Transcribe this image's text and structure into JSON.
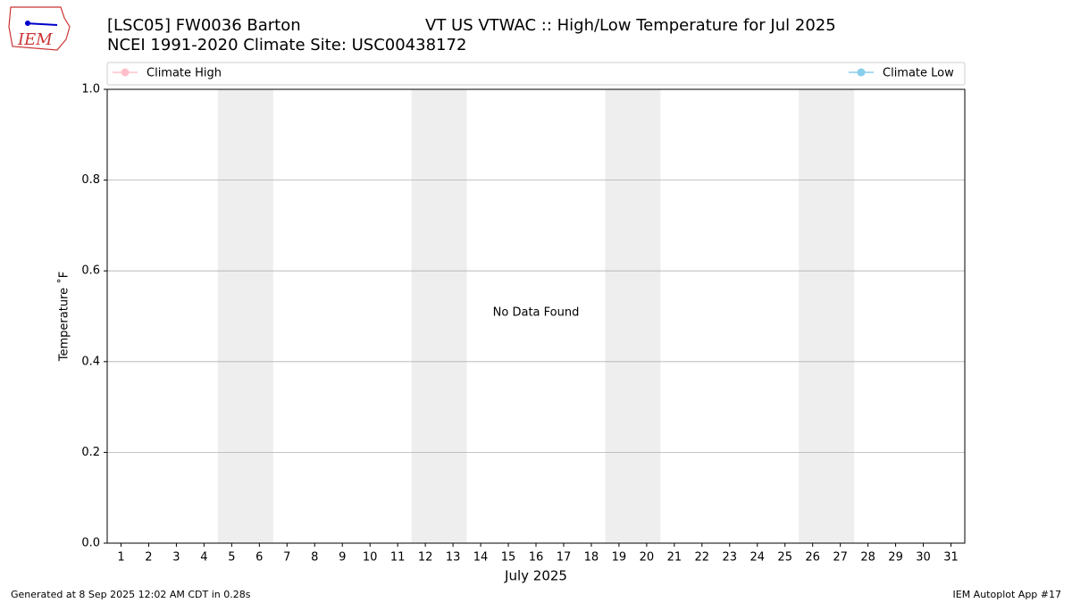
{
  "chart_data": {
    "type": "line",
    "logo_text": "IEM",
    "title_parts": [
      "[LSC05] FW0036 Barton",
      "VT US   VTWAC :: High/Low Temperature for Jul 2025"
    ],
    "subtitle": "NCEI 1991-2020 Climate Site: USC00438172",
    "x_label": "July 2025",
    "y_label": "Temperature ˚F",
    "annotation": "No Data Found",
    "footer_left": "Generated at 8 Sep 2025 12:02 AM CDT in 0.28s",
    "footer_right": "IEM Autoplot App #17",
    "x": [
      1,
      2,
      3,
      4,
      5,
      6,
      7,
      8,
      9,
      10,
      11,
      12,
      13,
      14,
      15,
      16,
      17,
      18,
      19,
      20,
      21,
      22,
      23,
      24,
      25,
      26,
      27,
      28,
      29,
      30,
      31
    ],
    "series": [
      {
        "name": "Climate High",
        "color": "pink",
        "values": [
          null,
          null,
          null,
          null,
          null,
          null,
          null,
          null,
          null,
          null,
          null,
          null,
          null,
          null,
          null,
          null,
          null,
          null,
          null,
          null,
          null,
          null,
          null,
          null,
          null,
          null,
          null,
          null,
          null,
          null,
          null
        ]
      },
      {
        "name": "Climate Low",
        "color": "skyblue",
        "values": [
          null,
          null,
          null,
          null,
          null,
          null,
          null,
          null,
          null,
          null,
          null,
          null,
          null,
          null,
          null,
          null,
          null,
          null,
          null,
          null,
          null,
          null,
          null,
          null,
          null,
          null,
          null,
          null,
          null,
          null,
          null
        ]
      }
    ],
    "shaded": [
      [
        4.5,
        6.5
      ],
      [
        11.5,
        13.5
      ],
      [
        18.5,
        20.5
      ],
      [
        25.5,
        27.5
      ]
    ],
    "shade_color": "#eeeeee",
    "xlim": [
      0.5,
      31.5
    ],
    "xticks": [
      1,
      2,
      3,
      4,
      5,
      6,
      7,
      8,
      9,
      10,
      11,
      12,
      13,
      14,
      15,
      16,
      17,
      18,
      19,
      20,
      21,
      22,
      23,
      24,
      25,
      26,
      27,
      28,
      29,
      30,
      31
    ],
    "ylim": [
      0,
      1
    ],
    "yticks": [
      {
        "value": 0,
        "label": "0.0"
      },
      0.2,
      0.4,
      0.6,
      0.8,
      {
        "value": 1,
        "label": "1.0"
      }
    ],
    "grid": true
  }
}
